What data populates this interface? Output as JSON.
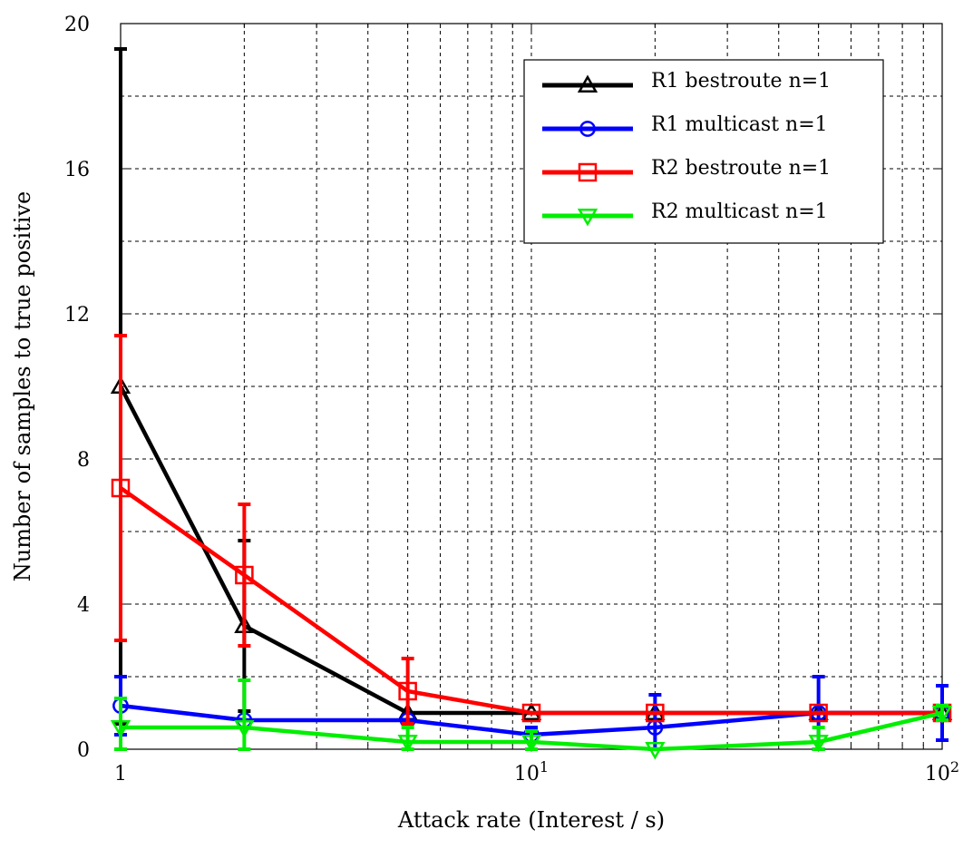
{
  "chart_data": {
    "type": "line",
    "xlabel": "Attack rate (Interest / s)",
    "ylabel": "Number of samples to true positive",
    "x_scale": "log",
    "xlim": [
      1,
      100
    ],
    "ylim": [
      0,
      20
    ],
    "x_ticks": [
      {
        "value": 1,
        "base": "1",
        "exp": ""
      },
      {
        "value": 10,
        "base": "10",
        "exp": "1"
      },
      {
        "value": 100,
        "base": "10",
        "exp": "2"
      }
    ],
    "y_ticks": [
      0,
      4,
      8,
      12,
      16,
      20
    ],
    "grid": true,
    "legend_position": "top-right",
    "x": [
      1,
      2,
      5,
      10,
      20,
      50,
      100
    ],
    "series": [
      {
        "name": "R1 bestroute n=1",
        "color": "#000000",
        "marker": "triangle-up",
        "values": [
          10,
          3.4,
          1.0,
          1.0,
          1.0,
          1.0,
          1.0
        ],
        "err": [
          9.3,
          2.35,
          0,
          0,
          0,
          0,
          0
        ]
      },
      {
        "name": "R1 multicast n=1",
        "color": "#0000ff",
        "marker": "circle",
        "values": [
          1.2,
          0.8,
          0.8,
          0.4,
          0.6,
          1.0,
          1.0
        ],
        "err": [
          0.8,
          0,
          0,
          0.2,
          0.9,
          1.0,
          0.75
        ]
      },
      {
        "name": "R2 bestroute n=1",
        "color": "#ff0000",
        "marker": "square",
        "values": [
          7.2,
          4.8,
          1.6,
          1.0,
          1.0,
          1.0,
          1.0
        ],
        "err": [
          4.2,
          1.95,
          0.9,
          0,
          0,
          0,
          0
        ]
      },
      {
        "name": "R2 multicast n=1",
        "color": "#00ee00",
        "marker": "triangle-down",
        "values": [
          0.6,
          0.6,
          0.2,
          0.2,
          0.0,
          0.2,
          1.0
        ],
        "err": [
          0.8,
          1.3,
          0.4,
          0.3,
          0,
          0.4,
          0.2
        ]
      }
    ]
  }
}
